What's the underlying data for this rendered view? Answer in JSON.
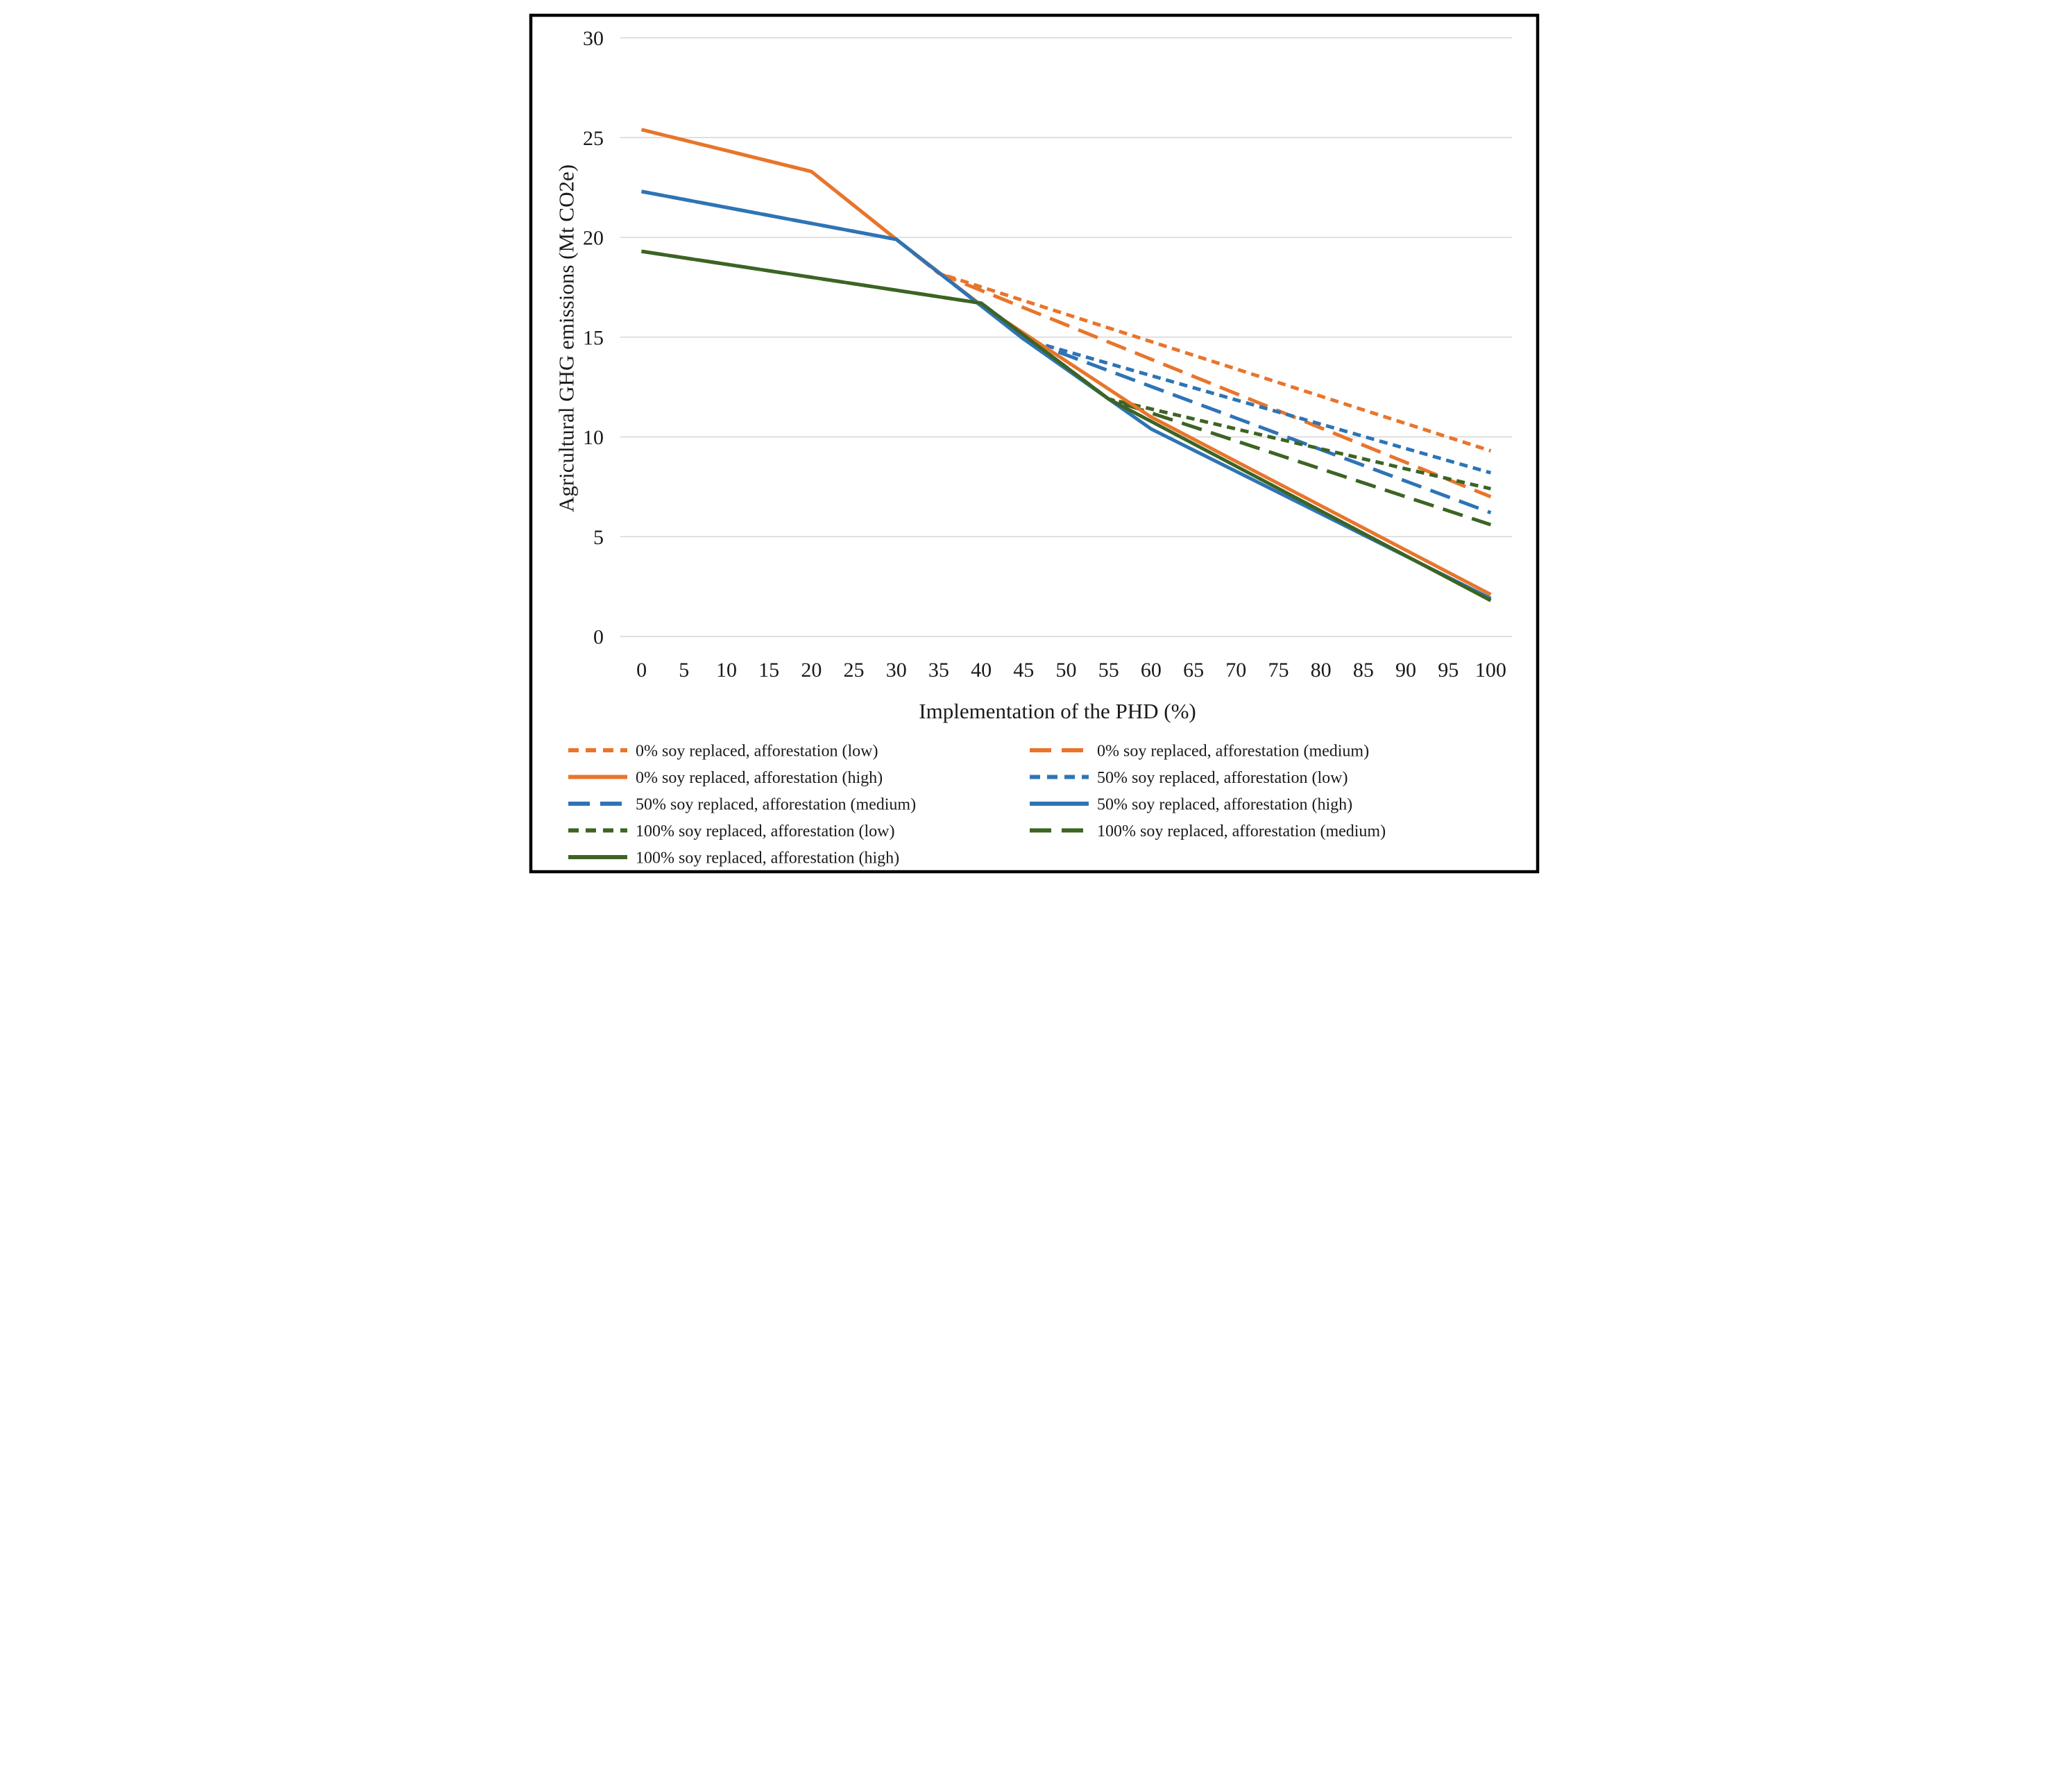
{
  "chart_data": {
    "type": "line",
    "title": "",
    "xlabel": "Implementation of the PHD (%)",
    "ylabel": "Agricultural GHG emissions (Mt CO2e)",
    "xlim": [
      0,
      100
    ],
    "ylim": [
      0,
      30
    ],
    "grid": "horizontal",
    "legend_position": "bottom-two-columns",
    "xticks": [
      0,
      5,
      10,
      15,
      20,
      25,
      30,
      35,
      40,
      45,
      50,
      55,
      60,
      65,
      70,
      75,
      80,
      85,
      90,
      95,
      100
    ],
    "yticks": [
      0,
      5,
      10,
      15,
      20,
      25,
      30
    ],
    "colors": {
      "orange": "#E8752C",
      "blue": "#2E74B5",
      "green": "#3C6423"
    },
    "dash": {
      "low": "24 16",
      "medium": "60 28",
      "high": ""
    },
    "series": [
      {
        "id": "soy0-low",
        "name": "0% soy replaced, afforestation (low)",
        "color": "orange",
        "style": "low",
        "x": [
          0,
          20,
          30,
          35,
          100
        ],
        "y": [
          25.4,
          23.3,
          19.9,
          18.2,
          9.3
        ]
      },
      {
        "id": "soy0-med",
        "name": "0% soy replaced, afforestation (medium)",
        "color": "orange",
        "style": "medium",
        "x": [
          0,
          20,
          30,
          35,
          100
        ],
        "y": [
          25.4,
          23.3,
          19.9,
          18.2,
          7.0
        ]
      },
      {
        "id": "soy0-high",
        "name": "0% soy replaced, afforestation (high)",
        "color": "orange",
        "style": "high",
        "x": [
          0,
          20,
          30,
          40,
          60,
          100
        ],
        "y": [
          25.4,
          23.3,
          19.9,
          16.6,
          11.0,
          2.1
        ]
      },
      {
        "id": "soy50-low",
        "name": "50% soy replaced, afforestation (low)",
        "color": "blue",
        "style": "low",
        "x": [
          0,
          30,
          45,
          100
        ],
        "y": [
          22.3,
          19.9,
          14.9,
          8.2
        ]
      },
      {
        "id": "soy50-med",
        "name": "50% soy replaced, afforestation (medium)",
        "color": "blue",
        "style": "medium",
        "x": [
          0,
          30,
          45,
          100
        ],
        "y": [
          22.3,
          19.9,
          14.9,
          6.2
        ]
      },
      {
        "id": "soy50-high",
        "name": "50% soy replaced, afforestation (high)",
        "color": "blue",
        "style": "high",
        "x": [
          0,
          30,
          45,
          60,
          100
        ],
        "y": [
          22.3,
          19.9,
          14.9,
          10.4,
          1.9
        ]
      },
      {
        "id": "soy100-low",
        "name": "100% soy replaced, afforestation (low)",
        "color": "green",
        "style": "low",
        "x": [
          0,
          40,
          55,
          100
        ],
        "y": [
          19.3,
          16.7,
          11.9,
          7.4
        ]
      },
      {
        "id": "soy100-med",
        "name": "100% soy replaced, afforestation (medium)",
        "color": "green",
        "style": "medium",
        "x": [
          0,
          40,
          55,
          100
        ],
        "y": [
          19.3,
          16.7,
          11.9,
          5.6
        ]
      },
      {
        "id": "soy100-high",
        "name": "100% soy replaced, afforestation (high)",
        "color": "green",
        "style": "high",
        "x": [
          0,
          40,
          55,
          100
        ],
        "y": [
          19.3,
          16.7,
          11.9,
          1.8
        ]
      }
    ],
    "legend": [
      {
        "series": "soy0-low",
        "label": "0% soy replaced, afforestation (low)",
        "col": 0,
        "row": 0
      },
      {
        "series": "soy0-med",
        "label": "0% soy replaced, afforestation (medium)",
        "col": 1,
        "row": 0
      },
      {
        "series": "soy0-high",
        "label": "0% soy replaced, afforestation (high)",
        "col": 0,
        "row": 1
      },
      {
        "series": "soy50-low",
        "label": "50% soy replaced, afforestation (low)",
        "col": 1,
        "row": 1
      },
      {
        "series": "soy50-med",
        "label": "50% soy replaced, afforestation (medium)",
        "col": 0,
        "row": 2
      },
      {
        "series": "soy50-high",
        "label": "50% soy replaced, afforestation (high)",
        "col": 1,
        "row": 2
      },
      {
        "series": "soy100-low",
        "label": "100% soy replaced, afforestation (low)",
        "col": 0,
        "row": 3
      },
      {
        "series": "soy100-med",
        "label": "100% soy replaced, afforestation (medium)",
        "col": 1,
        "row": 3
      },
      {
        "series": "soy100-high",
        "label": "100% soy replaced, afforestation (high)",
        "col": 0,
        "row": 4
      }
    ]
  }
}
